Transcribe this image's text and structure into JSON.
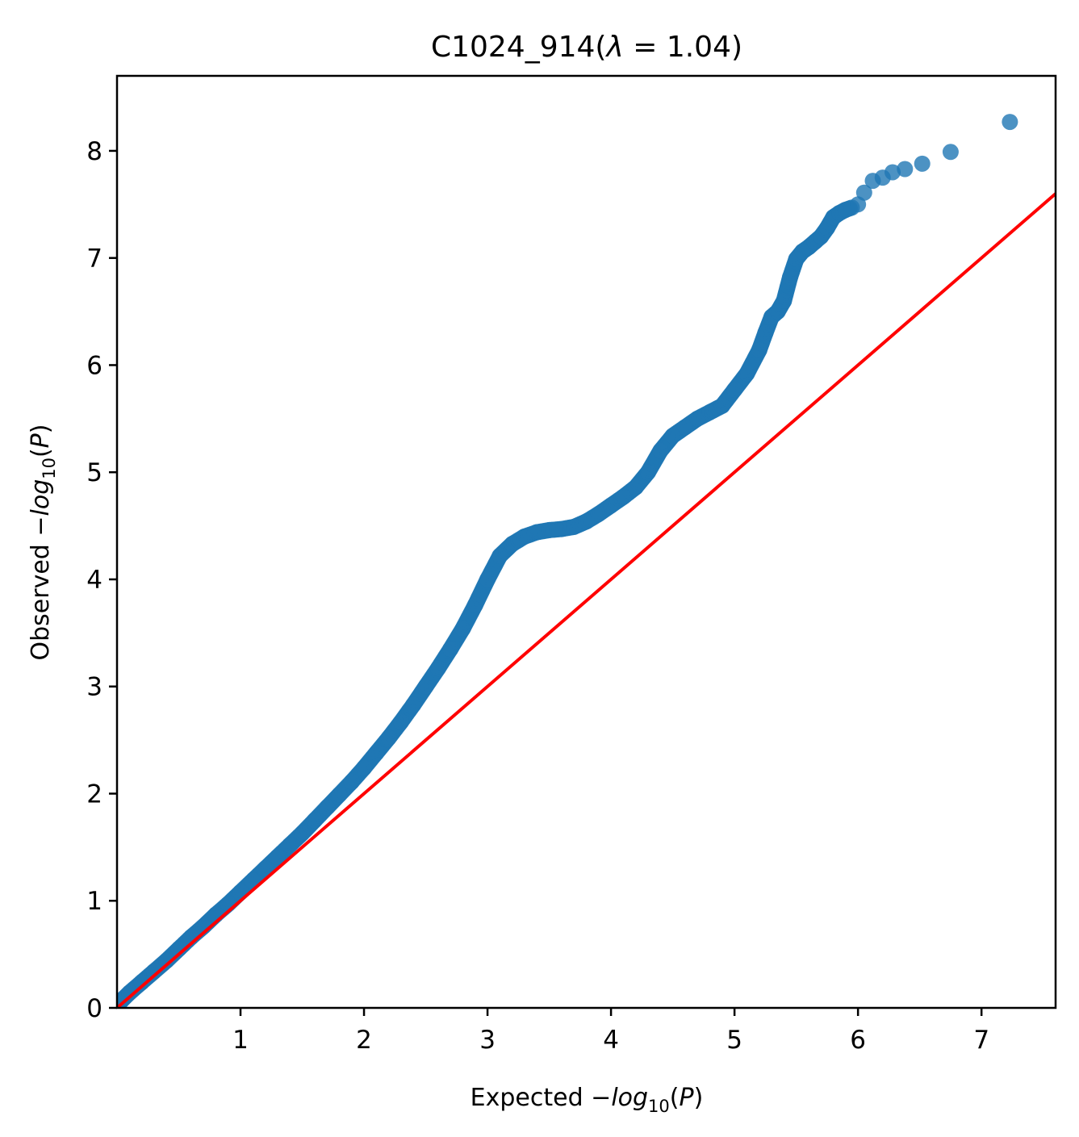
{
  "chart_data": {
    "type": "scatter",
    "title": {
      "prefix": "C1024_914(",
      "lambda": "λ",
      "eq": " = 1.04)"
    },
    "xlabel": {
      "prefix": "Expected −",
      "italic": "log",
      "sub": "10",
      "open": "(",
      "p": "P",
      "close": ")"
    },
    "ylabel": {
      "prefix": "Observed −",
      "italic": "log",
      "sub": "10",
      "open": "(",
      "p": "P",
      "close": ")"
    },
    "xlim": [
      0,
      7.6
    ],
    "ylim": [
      0,
      8.7
    ],
    "x_ticks": [
      1,
      2,
      3,
      4,
      5,
      6,
      7
    ],
    "x_tick_labels": [
      "1",
      "2",
      "3",
      "4",
      "5",
      "6",
      "7"
    ],
    "y_ticks": [
      0,
      1,
      2,
      3,
      4,
      5,
      6,
      7,
      8
    ],
    "y_tick_labels": [
      "0",
      "1",
      "2",
      "3",
      "4",
      "5",
      "6",
      "7",
      "8"
    ],
    "grid": false,
    "colors": {
      "points": "#1f77b4",
      "reference_line": "#ff0000",
      "axes": "#000000"
    },
    "reference_line": {
      "x": [
        0,
        7.6
      ],
      "y": [
        0,
        7.6
      ]
    },
    "series": [
      {
        "points_x": [
          0.03,
          0.1,
          0.2,
          0.3,
          0.4,
          0.5,
          0.6,
          0.7,
          0.8,
          0.9,
          1.0,
          1.1,
          1.2,
          1.3,
          1.4,
          1.5,
          1.6,
          1.7,
          1.8,
          1.9,
          2.0,
          2.1,
          2.2,
          2.3,
          2.4,
          2.5,
          2.6,
          2.7,
          2.8,
          2.9,
          3.0,
          3.1,
          3.2,
          3.3,
          3.4,
          3.5,
          3.6,
          3.7,
          3.8,
          3.9,
          4.0,
          4.1,
          4.2,
          4.3,
          4.4,
          4.5,
          4.6,
          4.7,
          4.8,
          4.9,
          5.0,
          5.1,
          5.2,
          5.25,
          5.3,
          5.35,
          5.4,
          5.45,
          5.5,
          5.55,
          5.6,
          5.65,
          5.7,
          5.75,
          5.8,
          5.85,
          5.9,
          5.95,
          6.0,
          6.05,
          6.12,
          6.2,
          6.28,
          6.38,
          6.52,
          6.75,
          7.23
        ],
        "points_y": [
          0.06,
          0.14,
          0.24,
          0.34,
          0.44,
          0.55,
          0.66,
          0.76,
          0.87,
          0.97,
          1.08,
          1.19,
          1.3,
          1.41,
          1.52,
          1.63,
          1.75,
          1.87,
          1.99,
          2.11,
          2.24,
          2.38,
          2.52,
          2.67,
          2.83,
          3.0,
          3.17,
          3.35,
          3.54,
          3.76,
          4.0,
          4.22,
          4.33,
          4.4,
          4.44,
          4.46,
          4.47,
          4.49,
          4.54,
          4.61,
          4.69,
          4.77,
          4.86,
          5.0,
          5.2,
          5.34,
          5.42,
          5.5,
          5.56,
          5.62,
          5.77,
          5.92,
          6.14,
          6.3,
          6.45,
          6.5,
          6.6,
          6.82,
          6.99,
          7.06,
          7.1,
          7.15,
          7.2,
          7.28,
          7.38,
          7.42,
          7.45,
          7.47,
          7.5,
          7.61,
          7.72,
          7.75,
          7.8,
          7.83,
          7.88,
          7.99,
          8.27
        ]
      }
    ]
  }
}
